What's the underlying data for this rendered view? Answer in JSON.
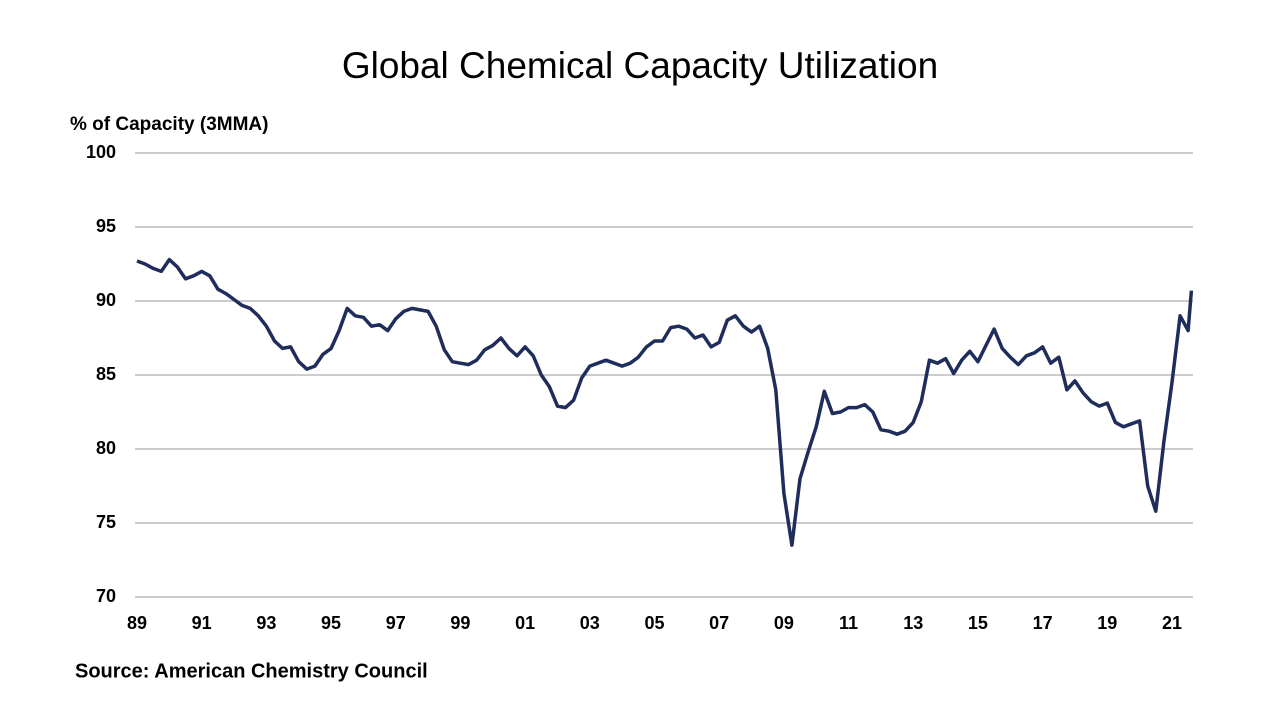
{
  "chart_data": {
    "type": "line",
    "title": "Global Chemical Capacity Utilization",
    "y_label": "% of Capacity (3MMA)",
    "source": "Source: American Chemistry Council",
    "x": [
      1989,
      1989.25,
      1989.5,
      1989.75,
      1990,
      1990.25,
      1990.5,
      1990.75,
      1991,
      1991.25,
      1991.5,
      1991.75,
      1992,
      1992.25,
      1992.5,
      1992.75,
      1993,
      1993.25,
      1993.5,
      1993.75,
      1994,
      1994.25,
      1994.5,
      1994.75,
      1995,
      1995.25,
      1995.5,
      1995.75,
      1996,
      1996.25,
      1996.5,
      1996.75,
      1997,
      1997.25,
      1997.5,
      1997.75,
      1998,
      1998.25,
      1998.5,
      1998.75,
      1999,
      1999.25,
      1999.5,
      1999.75,
      2000,
      2000.25,
      2000.5,
      2000.75,
      2001,
      2001.25,
      2001.5,
      2001.75,
      2002,
      2002.25,
      2002.5,
      2002.75,
      2003,
      2003.25,
      2003.5,
      2003.75,
      2004,
      2004.25,
      2004.5,
      2004.75,
      2005,
      2005.25,
      2005.5,
      2005.75,
      2006,
      2006.25,
      2006.5,
      2006.75,
      2007,
      2007.25,
      2007.5,
      2007.75,
      2008,
      2008.25,
      2008.5,
      2008.75,
      2009,
      2009.25,
      2009.5,
      2009.75,
      2010,
      2010.25,
      2010.5,
      2010.75,
      2011,
      2011.25,
      2011.5,
      2011.75,
      2012,
      2012.25,
      2012.5,
      2012.75,
      2013,
      2013.25,
      2013.5,
      2013.75,
      2014,
      2014.25,
      2014.5,
      2014.75,
      2015,
      2015.25,
      2015.5,
      2015.75,
      2016,
      2016.25,
      2016.5,
      2016.75,
      2017,
      2017.25,
      2017.5,
      2017.75,
      2018,
      2018.25,
      2018.5,
      2018.75,
      2019,
      2019.25,
      2019.5,
      2019.75,
      2020,
      2020.25,
      2020.5,
      2020.75,
      2021,
      2021.25,
      2021.5,
      2021.6
    ],
    "series": [
      {
        "name": "Capacity Utilization",
        "color": "#1f2d5c",
        "values": [
          92.7,
          92.5,
          92.2,
          92.0,
          92.8,
          92.3,
          91.5,
          91.7,
          92.0,
          91.7,
          90.8,
          90.5,
          90.1,
          89.7,
          89.5,
          89.0,
          88.3,
          87.3,
          86.8,
          86.9,
          85.9,
          85.4,
          85.6,
          86.4,
          86.8,
          88.0,
          89.5,
          89.0,
          88.9,
          88.3,
          88.4,
          88.0,
          88.8,
          89.3,
          89.5,
          89.4,
          89.3,
          88.3,
          86.7,
          85.9,
          85.8,
          85.7,
          86.0,
          86.7,
          87.0,
          87.5,
          86.8,
          86.3,
          86.9,
          86.3,
          85.0,
          84.2,
          82.9,
          82.8,
          83.3,
          84.8,
          85.6,
          85.8,
          86.0,
          85.8,
          85.6,
          85.8,
          86.2,
          86.9,
          87.3,
          87.3,
          88.2,
          88.3,
          88.1,
          87.5,
          87.7,
          86.9,
          87.2,
          88.7,
          89.0,
          88.3,
          87.9,
          88.3,
          86.8,
          84.0,
          77.0,
          73.5,
          78.0,
          79.8,
          81.5,
          83.9,
          82.4,
          82.5,
          82.8,
          82.8,
          83.0,
          82.5,
          81.3,
          81.2,
          81.0,
          81.2,
          81.8,
          83.2,
          86.0,
          85.8,
          86.1,
          85.1,
          86.0,
          86.6,
          85.9,
          87.0,
          88.1,
          86.8,
          86.2,
          85.7,
          86.3,
          86.5,
          86.9,
          85.8,
          86.2,
          84.0,
          84.6,
          83.8,
          83.2,
          82.9,
          83.1,
          81.8,
          81.5,
          81.7,
          81.9,
          77.5,
          75.8,
          80.5,
          84.5,
          89.0,
          88.0,
          90.7
        ]
      }
    ],
    "xlim": [
      1989,
      2021.65
    ],
    "xticks": [
      {
        "value": 1989,
        "label": "89"
      },
      {
        "value": 1991,
        "label": "91"
      },
      {
        "value": 1993,
        "label": "93"
      },
      {
        "value": 1995,
        "label": "95"
      },
      {
        "value": 1997,
        "label": "97"
      },
      {
        "value": 1999,
        "label": "99"
      },
      {
        "value": 2001,
        "label": "01"
      },
      {
        "value": 2003,
        "label": "03"
      },
      {
        "value": 2005,
        "label": "05"
      },
      {
        "value": 2007,
        "label": "07"
      },
      {
        "value": 2009,
        "label": "09"
      },
      {
        "value": 2011,
        "label": "11"
      },
      {
        "value": 2013,
        "label": "13"
      },
      {
        "value": 2015,
        "label": "15"
      },
      {
        "value": 2017,
        "label": "17"
      },
      {
        "value": 2019,
        "label": "19"
      },
      {
        "value": 2021,
        "label": "21"
      }
    ],
    "ylim": [
      70,
      100
    ],
    "yticks": [
      70,
      75,
      80,
      85,
      90,
      95,
      100
    ],
    "grid": true
  }
}
